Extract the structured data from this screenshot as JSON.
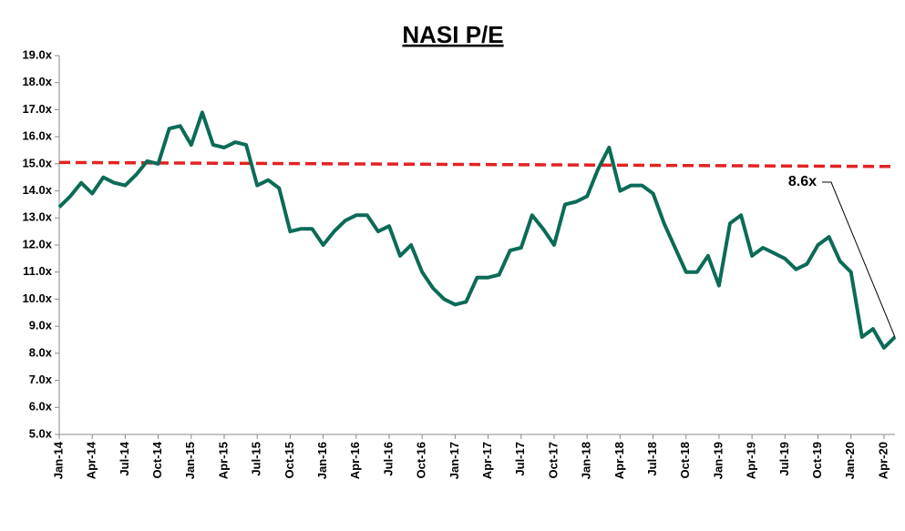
{
  "chart_data": {
    "type": "line",
    "title": "NASI P/E",
    "categories": [
      "Jan-14",
      null,
      null,
      "Apr-14",
      null,
      null,
      "Jul-14",
      null,
      null,
      "Oct-14",
      null,
      null,
      "Jan-15",
      null,
      null,
      "Apr-15",
      null,
      null,
      "Jul-15",
      null,
      null,
      "Oct-15",
      null,
      null,
      "Jan-16",
      null,
      null,
      "Apr-16",
      null,
      null,
      "Jul-16",
      null,
      null,
      "Oct-16",
      null,
      null,
      "Jan-17",
      null,
      null,
      "Apr-17",
      null,
      null,
      "Jul-17",
      null,
      null,
      "Oct-17",
      null,
      null,
      "Jan-18",
      null,
      null,
      "Apr-18",
      null,
      null,
      "Jul-18",
      null,
      null,
      "Oct-18",
      null,
      null,
      "Jan-19",
      null,
      null,
      "Apr-19",
      null,
      null,
      "Jul-19",
      null,
      null,
      "Oct-19",
      null,
      null,
      "Jan-20",
      null,
      null,
      "Apr-20",
      null
    ],
    "series": [
      {
        "color": "#0b6b57",
        "values": [
          13.4,
          13.8,
          14.3,
          13.9,
          14.5,
          14.3,
          14.2,
          14.6,
          15.1,
          15.0,
          16.3,
          16.4,
          15.7,
          16.9,
          15.7,
          15.6,
          15.8,
          15.7,
          14.2,
          14.4,
          14.1,
          12.5,
          12.6,
          12.6,
          12.0,
          12.5,
          12.9,
          13.1,
          13.1,
          12.5,
          12.7,
          11.6,
          12.0,
          11.0,
          10.4,
          10.0,
          9.8,
          9.9,
          10.8,
          10.8,
          10.9,
          11.8,
          11.9,
          13.1,
          12.6,
          12.0,
          13.5,
          13.6,
          13.8,
          14.8,
          15.6,
          14.0,
          14.2,
          14.2,
          13.9,
          12.8,
          11.9,
          11.0,
          11.0,
          11.6,
          10.5,
          12.8,
          13.1,
          11.6,
          11.9,
          11.7,
          11.5,
          11.1,
          11.3,
          12.0,
          12.3,
          11.4,
          11.0,
          8.6,
          8.9,
          8.2,
          8.6
        ]
      }
    ],
    "average_line": {
      "start": 15.05,
      "end": 14.9,
      "color": "#e32222"
    },
    "annotation": {
      "label": "8.6x",
      "value": 8.6
    },
    "ylim": [
      5,
      19
    ],
    "yticks": [
      {
        "value": 5,
        "label": "5.0x"
      },
      {
        "value": 6,
        "label": "6.0x"
      },
      {
        "value": 7,
        "label": "7.0x"
      },
      {
        "value": 8,
        "label": "8.0x"
      },
      {
        "value": 9,
        "label": "9.0x"
      },
      {
        "value": 10,
        "label": "10.0x"
      },
      {
        "value": 11,
        "label": "11.0x"
      },
      {
        "value": 12,
        "label": "12.0x"
      },
      {
        "value": 13,
        "label": "13.0x"
      },
      {
        "value": 14,
        "label": "14.0x"
      },
      {
        "value": 15,
        "label": "15.0x"
      },
      {
        "value": 16,
        "label": "16.0x"
      },
      {
        "value": 17,
        "label": "17.0x"
      },
      {
        "value": 18,
        "label": "18.0x"
      },
      {
        "value": 19,
        "label": "19.0x"
      }
    ],
    "grid": false
  }
}
